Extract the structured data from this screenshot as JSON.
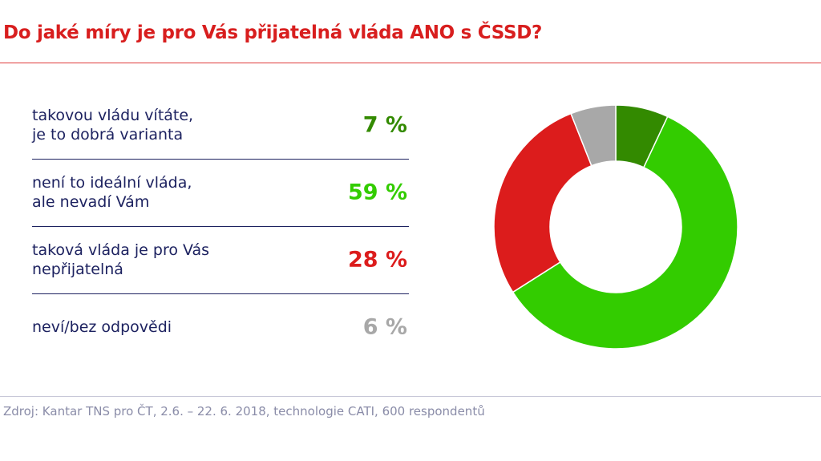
{
  "chart_data": {
    "type": "pie",
    "donut": true,
    "title": "Do jaké míry je pro Vás přijatelná vláda ANO s ČSSD?",
    "categories": [
      "takovou vládu vítáte,\nje to dobrá varianta",
      "není to ideální vláda,\nale nevadí Vám",
      "taková vláda je pro Vás\nnepřijatelná",
      "neví/bez odpovědi"
    ],
    "values": [
      7,
      59,
      28,
      6
    ],
    "labels": [
      "7 %",
      "59 %",
      "28 %",
      "6 %"
    ],
    "colors": [
      "#338a00",
      "#33cc00",
      "#dc1c1c",
      "#a8a8a8"
    ]
  },
  "source": "Zdroj: Kantar TNS pro ČT, 2.6. – 22. 6. 2018, technologie CATI, 600 respondentů"
}
